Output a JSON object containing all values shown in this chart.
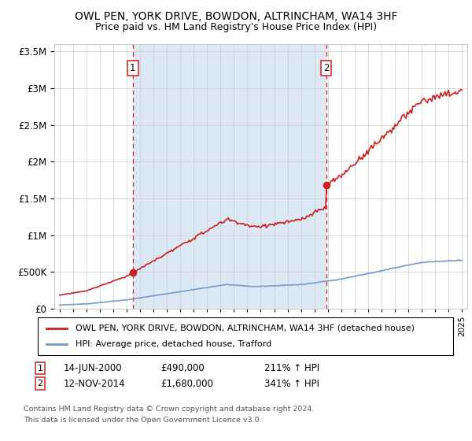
{
  "title": "OWL PEN, YORK DRIVE, BOWDON, ALTRINCHAM, WA14 3HF",
  "subtitle": "Price paid vs. HM Land Registry's House Price Index (HPI)",
  "legend_entry1": "OWL PEN, YORK DRIVE, BOWDON, ALTRINCHAM, WA14 3HF (detached house)",
  "legend_entry2": "HPI: Average price, detached house, Trafford",
  "annotation1_date": "14-JUN-2000",
  "annotation1_price": "£490,000",
  "annotation1_hpi": "211% ↑ HPI",
  "annotation2_date": "12-NOV-2014",
  "annotation2_price": "£1,680,000",
  "annotation2_hpi": "341% ↑ HPI",
  "footnote1": "Contains HM Land Registry data © Crown copyright and database right 2024.",
  "footnote2": "This data is licensed under the Open Government Licence v3.0.",
  "hpi_color": "#7799cc",
  "price_color": "#cc2222",
  "vline_color": "#cc3333",
  "shade_color": "#dde8f5",
  "background_color": "#ffffff",
  "grid_color": "#cccccc",
  "ylim_max": 3600000,
  "ylim_min": 0,
  "t1": 2000.458,
  "t2": 2014.875,
  "price1": 490000,
  "price2": 1680000
}
